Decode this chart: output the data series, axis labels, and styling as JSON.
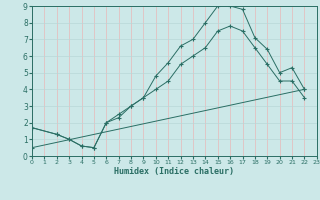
{
  "xlabel": "Humidex (Indice chaleur)",
  "bg_color": "#cce8e8",
  "line_color": "#2a6e64",
  "xlim": [
    0,
    23
  ],
  "ylim": [
    0,
    9
  ],
  "xticks": [
    0,
    1,
    2,
    3,
    4,
    5,
    6,
    7,
    8,
    9,
    10,
    11,
    12,
    13,
    14,
    15,
    16,
    17,
    18,
    19,
    20,
    21,
    22,
    23
  ],
  "yticks": [
    0,
    1,
    2,
    3,
    4,
    5,
    6,
    7,
    8,
    9
  ],
  "series1_x": [
    0,
    2,
    3,
    4,
    5,
    6,
    7,
    8,
    9,
    10,
    11,
    12,
    13,
    14,
    15,
    16,
    17,
    18,
    19,
    20,
    21,
    22
  ],
  "series1_y": [
    1.7,
    1.3,
    1.0,
    0.6,
    0.5,
    2.0,
    2.3,
    3.0,
    3.5,
    4.8,
    5.6,
    6.6,
    7.0,
    8.0,
    9.0,
    9.0,
    8.8,
    7.1,
    6.4,
    5.0,
    5.3,
    4.0
  ],
  "series2_x": [
    0,
    2,
    3,
    4,
    5,
    6,
    7,
    8,
    9,
    10,
    11,
    12,
    13,
    14,
    15,
    16,
    17,
    18,
    19,
    20,
    21,
    22
  ],
  "series2_y": [
    1.7,
    1.3,
    1.0,
    0.6,
    0.5,
    2.0,
    2.5,
    3.0,
    3.5,
    4.0,
    4.5,
    5.5,
    6.0,
    6.5,
    7.5,
    7.8,
    7.5,
    6.5,
    5.5,
    4.5,
    4.5,
    3.5
  ],
  "series3_x": [
    0,
    22
  ],
  "series3_y": [
    0.5,
    4.0
  ],
  "vgrid_color": "#e8b8b8",
  "hgrid_color": "#b8d8d8"
}
